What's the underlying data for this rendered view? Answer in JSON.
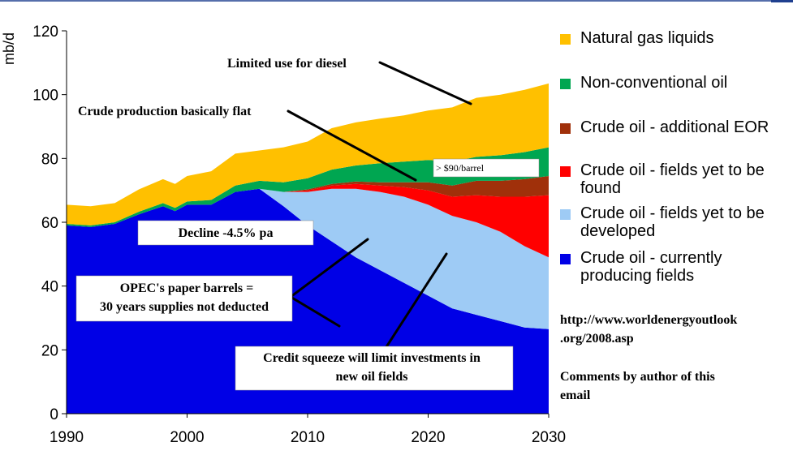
{
  "chart_data": {
    "type": "area",
    "stacked": true,
    "ylabel": "mb/d",
    "xlabel": "",
    "xlim": [
      1990,
      2030
    ],
    "ylim": [
      0,
      120
    ],
    "x_ticks": [
      "1990",
      "2000",
      "2010",
      "2020",
      "2030"
    ],
    "y_ticks": [
      "0",
      "20",
      "40",
      "60",
      "80",
      "100",
      "120"
    ],
    "grid": false,
    "legend_position": "right",
    "x": [
      1990,
      1992,
      1994,
      1996,
      1998,
      1999,
      2000,
      2002,
      2004,
      2006,
      2008,
      2010,
      2012,
      2014,
      2016,
      2018,
      2020,
      2022,
      2024,
      2026,
      2028,
      2030
    ],
    "series": [
      {
        "name": "Crude oil - currently producing fields",
        "color": "#0000e6",
        "values": [
          59,
          58.5,
          59.5,
          62.5,
          65,
          63.5,
          65.5,
          65.5,
          69.5,
          70.5,
          65,
          59,
          54,
          49,
          45,
          41,
          37,
          33,
          31,
          29,
          27,
          26.5
        ]
      },
      {
        "name": "Crude oil - fields yet to be developed",
        "color": "#9ecbf5",
        "values": [
          0,
          0,
          0,
          0,
          0,
          0,
          0,
          0,
          0,
          0,
          4.5,
          10.5,
          16.5,
          21.5,
          24.5,
          27,
          28.5,
          29,
          29,
          28,
          25.5,
          22.5
        ]
      },
      {
        "name": "Crude oil - fields yet to be found",
        "color": "#ff0000",
        "values": [
          0,
          0,
          0,
          0,
          0,
          0,
          0,
          0,
          0,
          0,
          0,
          0.5,
          1,
          1.5,
          2,
          3,
          4.5,
          6,
          8.5,
          11,
          15.5,
          19.5
        ]
      },
      {
        "name": "Crude oil - additional EOR",
        "color": "#a0300a",
        "values": [
          0,
          0,
          0,
          0,
          0,
          0,
          0,
          0,
          0,
          0,
          0,
          0.3,
          0.5,
          0.8,
          1,
          1.5,
          2.5,
          3.5,
          4.5,
          5,
          5.5,
          6
        ]
      },
      {
        "name": "Non-conventional oil",
        "color": "#00a651",
        "values": [
          0.5,
          0.5,
          0.5,
          0.8,
          1,
          1,
          1,
          1.5,
          2,
          2.5,
          3,
          3.5,
          4.5,
          5,
          6,
          6.5,
          7,
          7.5,
          7.5,
          8,
          8.5,
          9
        ]
      },
      {
        "name": "Natural gas liquids",
        "color": "#ffc000",
        "values": [
          6,
          6,
          6,
          7,
          7.5,
          7.5,
          8,
          9,
          10,
          9.5,
          11,
          11.5,
          13,
          13.5,
          14,
          14.5,
          15.5,
          17,
          18.5,
          19,
          19.5,
          20
        ]
      }
    ],
    "annotations": [
      {
        "id": "diesel",
        "text": "Limited use for diesel"
      },
      {
        "id": "flat",
        "text": "Crude production basically flat"
      },
      {
        "id": "price",
        "text": "> $90/barrel"
      },
      {
        "id": "decline",
        "text": "Decline -4.5% pa"
      },
      {
        "id": "opec1",
        "text": "OPEC's paper barrels ="
      },
      {
        "id": "opec2",
        "text": "30 years supplies not deducted"
      },
      {
        "id": "credit1",
        "text": "Credit squeeze will limit investments in"
      },
      {
        "id": "credit2",
        "text": "new oil  fields"
      }
    ]
  },
  "source_text": {
    "line1": "http://www.worldenergyoutlook",
    "line2": ".org/2008.asp"
  },
  "comment_text": {
    "line1": "Comments by author of this",
    "line2": "email"
  }
}
